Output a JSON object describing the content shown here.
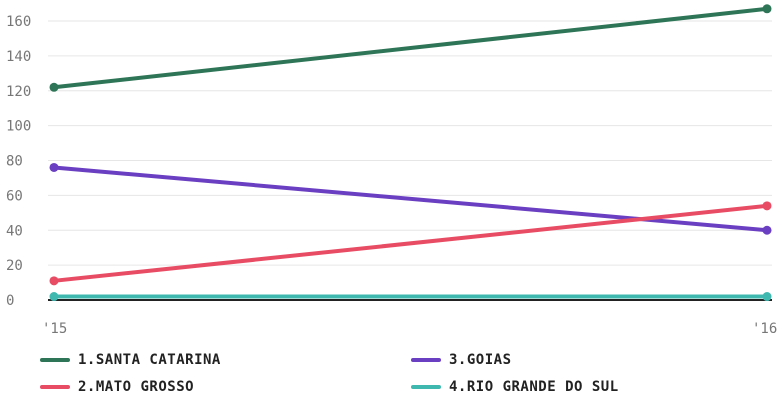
{
  "chart_data": {
    "type": "line",
    "x": [
      "'15",
      "'16"
    ],
    "ylim": [
      0,
      170
    ],
    "y_ticks": [
      0,
      20,
      40,
      60,
      80,
      100,
      120,
      140,
      160
    ],
    "grid": true,
    "legend_position": "bottom",
    "series": [
      {
        "name": "1.SANTA CATARINA",
        "values": [
          122,
          167
        ],
        "color": "#2e7557"
      },
      {
        "name": "2.MATO GROSSO",
        "values": [
          11,
          54
        ],
        "color": "#e84c64"
      },
      {
        "name": "3.GOIAS",
        "values": [
          76,
          40
        ],
        "color": "#6a3fc1"
      },
      {
        "name": "4.RIO GRANDE DO SUL",
        "values": [
          2,
          2
        ],
        "color": "#3fb8b0"
      }
    ]
  }
}
